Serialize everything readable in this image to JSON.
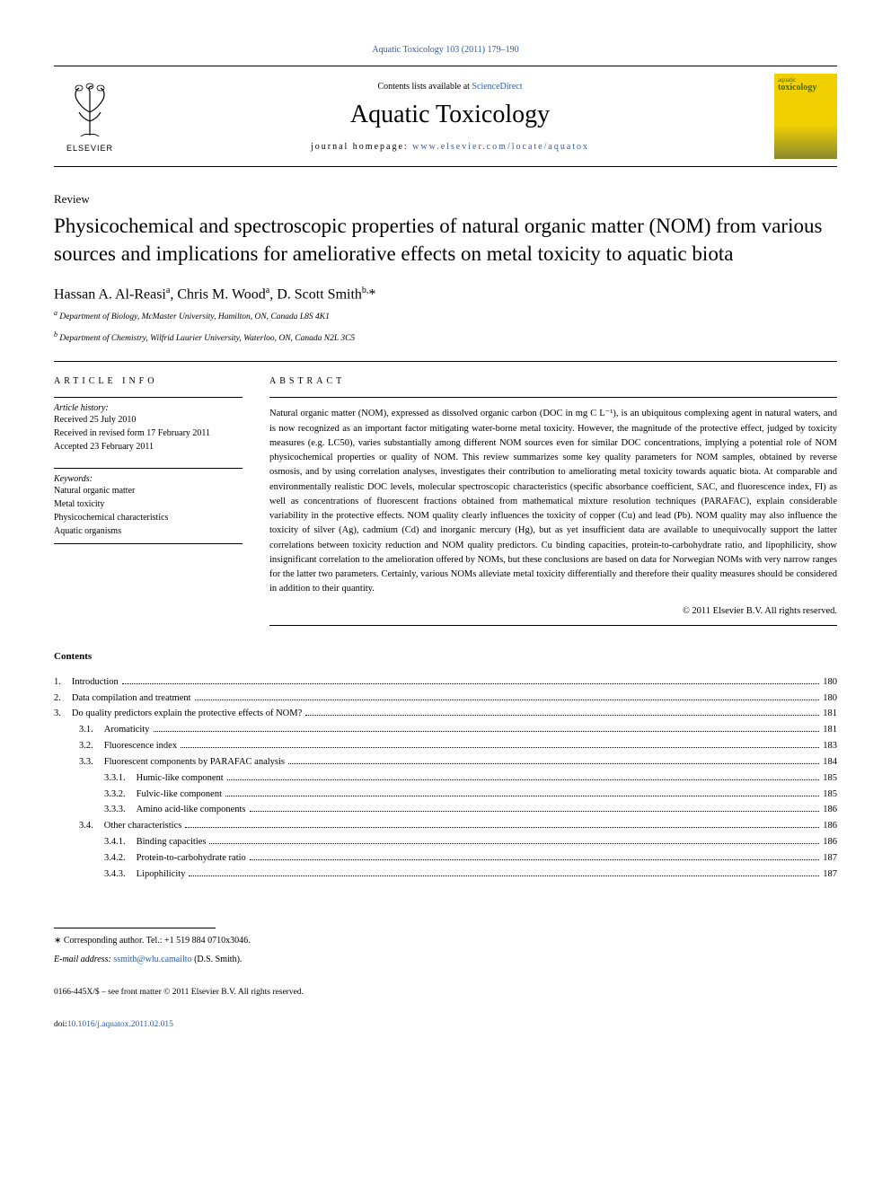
{
  "top_citation": "Aquatic Toxicology 103 (2011) 179–190",
  "header": {
    "contents_prefix": "Contents lists available at ",
    "contents_link": "ScienceDirect",
    "journal_name": "Aquatic Toxicology",
    "homepage_prefix": "journal homepage: ",
    "homepage_link": "www.elsevier.com/locate/aquatox",
    "elsevier_label": "ELSEVIER",
    "cover_line1": "aquatic",
    "cover_line2": "toxicology"
  },
  "article": {
    "type": "Review",
    "title": "Physicochemical and spectroscopic properties of natural organic matter (NOM) from various sources and implications for ameliorative effects on metal toxicity to aquatic biota",
    "authors_html": "Hassan A. Al-Reasi<sup>a</sup>, Chris M. Wood<sup>a</sup>, D. Scott Smith<sup>b,</sup>*",
    "affiliations": [
      "Department of Biology, McMaster University, Hamilton, ON, Canada L8S 4K1",
      "Department of Chemistry, Wilfrid Laurier University, Waterloo, ON, Canada N2L 3C5"
    ],
    "affil_markers": [
      "a",
      "b"
    ]
  },
  "info": {
    "section_label": "ARTICLE INFO",
    "history_label": "Article history:",
    "history": [
      "Received 25 July 2010",
      "Received in revised form 17 February 2011",
      "Accepted 23 February 2011"
    ],
    "keywords_label": "Keywords:",
    "keywords": [
      "Natural organic matter",
      "Metal toxicity",
      "Physicochemical characteristics",
      "Aquatic organisms"
    ]
  },
  "abstract": {
    "section_label": "ABSTRACT",
    "text": "Natural organic matter (NOM), expressed as dissolved organic carbon (DOC in mg C L⁻¹), is an ubiquitous complexing agent in natural waters, and is now recognized as an important factor mitigating water-borne metal toxicity. However, the magnitude of the protective effect, judged by toxicity measures (e.g. LC50), varies substantially among different NOM sources even for similar DOC concentrations, implying a potential role of NOM physicochemical properties or quality of NOM. This review summarizes some key quality parameters for NOM samples, obtained by reverse osmosis, and by using correlation analyses, investigates their contribution to ameliorating metal toxicity towards aquatic biota. At comparable and environmentally realistic DOC levels, molecular spectroscopic characteristics (specific absorbance coefficient, SAC, and fluorescence index, FI) as well as concentrations of fluorescent fractions obtained from mathematical mixture resolution techniques (PARAFAC), explain considerable variability in the protective effects. NOM quality clearly influences the toxicity of copper (Cu) and lead (Pb). NOM quality may also influence the toxicity of silver (Ag), cadmium (Cd) and inorganic mercury (Hg), but as yet insufficient data are available to unequivocally support the latter correlations between toxicity reduction and NOM quality predictors. Cu binding capacities, protein-to-carbohydrate ratio, and lipophilicity, show insignificant correlation to the amelioration offered by NOMs, but these conclusions are based on data for Norwegian NOMs with very narrow ranges for the latter two parameters. Certainly, various NOMs alleviate metal toxicity differentially and therefore their quality measures should be considered in addition to their quantity.",
    "copyright": "© 2011 Elsevier B.V. All rights reserved."
  },
  "toc": {
    "heading": "Contents",
    "items": [
      {
        "num": "1.",
        "title": "Introduction",
        "page": "180",
        "indent": 0
      },
      {
        "num": "2.",
        "title": "Data compilation and treatment",
        "page": "180",
        "indent": 0
      },
      {
        "num": "3.",
        "title": "Do quality predictors explain the protective effects of NOM?",
        "page": "181",
        "indent": 0
      },
      {
        "num": "3.1.",
        "title": "Aromaticity",
        "page": "181",
        "indent": 1
      },
      {
        "num": "3.2.",
        "title": "Fluorescence index",
        "page": "183",
        "indent": 1
      },
      {
        "num": "3.3.",
        "title": "Fluorescent components by PARAFAC analysis",
        "page": "184",
        "indent": 1
      },
      {
        "num": "3.3.1.",
        "title": "Humic-like component",
        "page": "185",
        "indent": 2
      },
      {
        "num": "3.3.2.",
        "title": "Fulvic-like component",
        "page": "185",
        "indent": 2
      },
      {
        "num": "3.3.3.",
        "title": "Amino acid-like components",
        "page": "186",
        "indent": 2
      },
      {
        "num": "3.4.",
        "title": "Other characteristics",
        "page": "186",
        "indent": 1
      },
      {
        "num": "3.4.1.",
        "title": "Binding capacities",
        "page": "186",
        "indent": 2
      },
      {
        "num": "3.4.2.",
        "title": "Protein-to-carbohydrate ratio",
        "page": "187",
        "indent": 2
      },
      {
        "num": "3.4.3.",
        "title": "Lipophilicity",
        "page": "187",
        "indent": 2
      }
    ]
  },
  "footer": {
    "corr_label": "∗ Corresponding author. Tel.: +1 519 884 0710x3046.",
    "email_label": "E-mail address:",
    "email": "ssmith@wlu.camailto",
    "email_name": " (D.S. Smith).",
    "issn_line": "0166-445X/$ – see front matter © 2011 Elsevier B.V. All rights reserved.",
    "doi_prefix": "doi:",
    "doi": "10.1016/j.aquatox.2011.02.015"
  }
}
